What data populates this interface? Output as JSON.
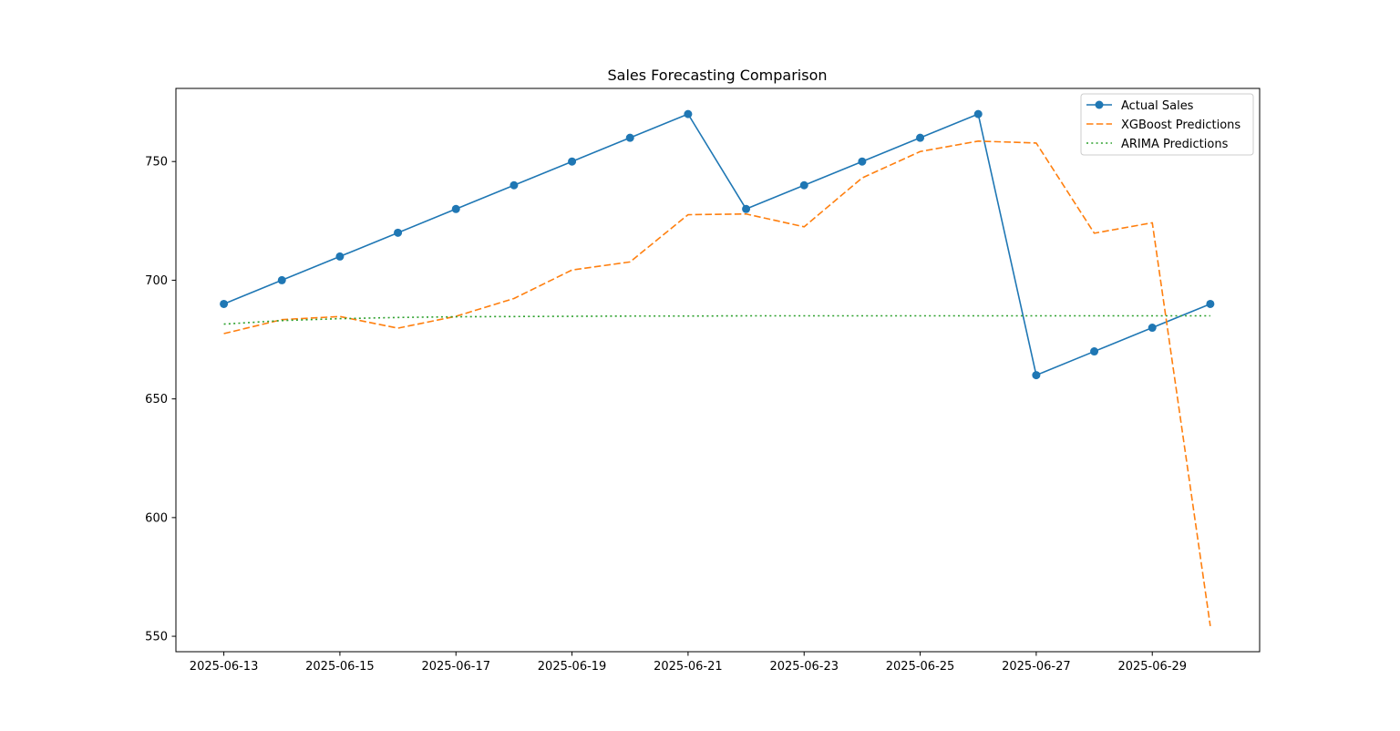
{
  "chart_data": {
    "type": "line",
    "title": "Sales Forecasting Comparison",
    "xlabel": "",
    "ylabel": "",
    "x": [
      "2025-06-13",
      "2025-06-14",
      "2025-06-15",
      "2025-06-16",
      "2025-06-17",
      "2025-06-18",
      "2025-06-19",
      "2025-06-20",
      "2025-06-21",
      "2025-06-22",
      "2025-06-23",
      "2025-06-24",
      "2025-06-25",
      "2025-06-26",
      "2025-06-27",
      "2025-06-28",
      "2025-06-29",
      "2025-06-30"
    ],
    "x_ticks": [
      "2025-06-13",
      "2025-06-15",
      "2025-06-17",
      "2025-06-19",
      "2025-06-21",
      "2025-06-23",
      "2025-06-25",
      "2025-06-27",
      "2025-06-29"
    ],
    "y_ticks": [
      550,
      600,
      650,
      700,
      750
    ],
    "xlim": [
      "2025-06-12.2",
      "2025-06-30.85"
    ],
    "ylim": [
      543.5,
      780.8
    ],
    "grid": false,
    "legend_position": "upper right",
    "series": [
      {
        "name": "Actual Sales",
        "color": "#1f77b4",
        "style": "solid",
        "marker": "circle",
        "values": [
          690,
          700,
          710,
          720,
          730,
          740,
          750,
          760,
          770,
          730,
          740,
          750,
          760,
          770,
          660,
          670,
          680,
          690
        ]
      },
      {
        "name": "XGBoost Predictions",
        "color": "#ff7f0e",
        "style": "dashed",
        "marker": "none",
        "values": [
          677.5,
          683.4,
          684.7,
          679.8,
          684.8,
          692.3,
          704.3,
          707.7,
          727.6,
          727.9,
          722.5,
          743.1,
          754.2,
          758.6,
          757.8,
          719.8,
          724.2,
          554.3
        ]
      },
      {
        "name": "ARIMA Predictions",
        "color": "#2ca02c",
        "style": "dotted",
        "marker": "none",
        "values": [
          681.5,
          683.0,
          683.8,
          684.3,
          684.6,
          684.7,
          684.8,
          684.9,
          684.9,
          685.0,
          685.0,
          685.0,
          685.0,
          685.0,
          685.0,
          685.0,
          685.0,
          685.0
        ]
      }
    ]
  }
}
